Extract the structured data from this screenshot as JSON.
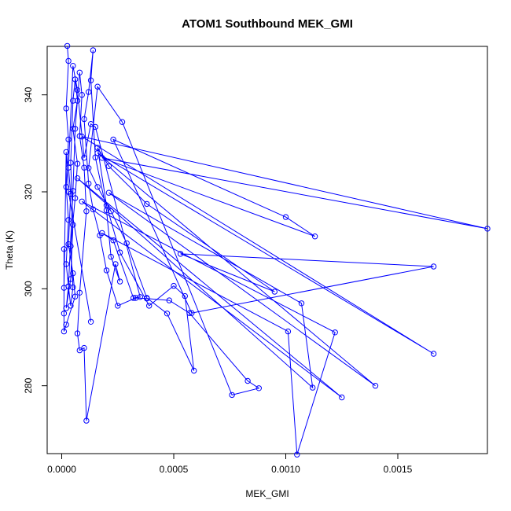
{
  "chart_data": {
    "type": "line",
    "title": "ATOM1 Southbound MEK_GMI",
    "xlabel": "MEK_GMI",
    "ylabel": "Theta (K)",
    "xlim": [
      -6.5e-05,
      0.0019
    ],
    "ylim": [
      266,
      350
    ],
    "x_ticks": [
      0.0,
      0.0005,
      0.001,
      0.0015
    ],
    "x_tick_labels": [
      "0.0000",
      "0.0005",
      "0.0010",
      "0.0015"
    ],
    "y_ticks": [
      280,
      300,
      320,
      340
    ],
    "y_tick_labels": [
      "280",
      "300",
      "320",
      "340"
    ],
    "grid": false,
    "legend": "none",
    "colors": {
      "series": "#0000ff",
      "axes": "#000000"
    },
    "series": [
      {
        "marker": "open-circle",
        "points": [
          [
            2.5e-05,
            350.1
          ],
          [
            3e-05,
            347.0
          ],
          [
            2e-05,
            337.2
          ],
          [
            3e-05,
            330.8
          ],
          [
            2e-05,
            321.0
          ],
          [
            3e-05,
            314.2
          ],
          [
            2e-05,
            305.1
          ],
          [
            3e-05,
            300.5
          ],
          [
            2e-05,
            296.0
          ],
          [
            4e-05,
            302.0
          ],
          [
            5e-05,
            313.2
          ],
          [
            4e-05,
            326.0
          ],
          [
            5e-05,
            338.8
          ],
          [
            6e-05,
            343.2
          ],
          [
            7e-05,
            338.8
          ],
          [
            5e-05,
            333.0
          ],
          [
            7e-05,
            325.8
          ],
          [
            6e-05,
            318.7
          ],
          [
            4e-05,
            308.8
          ],
          [
            5e-05,
            300.3
          ],
          [
            4e-05,
            296.5
          ],
          [
            3e-05,
            300.5
          ],
          [
            5e-05,
            320.2
          ],
          [
            6e-05,
            333.0
          ],
          [
            8e-05,
            344.6
          ],
          [
            9e-05,
            340.0
          ],
          [
            8e-05,
            331.5
          ],
          [
            0.0001,
            325.0
          ],
          [
            0.00011,
            316.0
          ],
          [
            8e-05,
            299.2
          ],
          [
            7e-05,
            290.8
          ],
          [
            8e-05,
            287.3
          ],
          [
            0.0001,
            287.8
          ],
          [
            0.00011,
            272.8
          ],
          [
            0.00024,
            305.1
          ],
          [
            0.00026,
            301.5
          ],
          [
            0.00022,
            306.6
          ],
          [
            0.0002,
            316.2
          ],
          [
            0.00015,
            327.1
          ],
          [
            0.00013,
            343.0
          ],
          [
            0.00014,
            349.2
          ],
          [
            0.00012,
            340.6
          ],
          [
            0.0001,
            335.0
          ],
          [
            0.00012,
            321.7
          ],
          [
            0.00014,
            316.4
          ],
          [
            0.00017,
            311.0
          ],
          [
            0.0002,
            303.8
          ],
          [
            0.00025,
            296.5
          ],
          [
            0.00033,
            298.1
          ],
          [
            0.00038,
            298.0
          ],
          [
            0.00048,
            297.6
          ],
          [
            0.00057,
            295.0
          ],
          [
            0.00083,
            281.0
          ],
          [
            0.00088,
            279.5
          ],
          [
            0.00076,
            278.1
          ],
          [
            0.00027,
            334.4
          ],
          [
            0.00016,
            341.7
          ],
          [
            0.00012,
            324.9
          ],
          [
            0.00016,
            321.0
          ],
          [
            0.00022,
            316.0
          ],
          [
            0.00029,
            309.4
          ],
          [
            0.00038,
            298.1
          ],
          [
            0.00047,
            294.9
          ],
          [
            0.00059,
            283.1
          ],
          [
            0.00055,
            298.5
          ],
          [
            0.0005,
            300.6
          ],
          [
            0.00039,
            296.5
          ],
          [
            0.00026,
            307.5
          ],
          [
            0.0002,
            317.2
          ],
          [
            0.00016,
            329.1
          ],
          [
            0.00021,
            325.3
          ],
          [
            0.00038,
            317.5
          ],
          [
            0.00095,
            299.4
          ],
          [
            0.00053,
            307.2
          ],
          [
            0.00166,
            304.6
          ],
          [
            0.00058,
            295.0
          ],
          [
            0.00023,
            330.8
          ],
          [
            0.001,
            314.8
          ],
          [
            0.00113,
            310.8
          ],
          [
            0.00018,
            327.0
          ],
          [
            0.0019,
            312.4
          ],
          [
            9e-05,
            331.4
          ],
          [
            0.00166,
            286.6
          ],
          [
            0.00016,
            328.0
          ],
          [
            0.0014,
            280.0
          ],
          [
            0.00021,
            319.8
          ],
          [
            0.00107,
            297.0
          ],
          [
            0.00112,
            279.6
          ],
          [
            7e-05,
            322.8
          ],
          [
            0.00125,
            277.6
          ],
          [
            9e-05,
            318.0
          ],
          [
            0.00122,
            291.0
          ],
          [
            0.00105,
            265.8
          ],
          [
            0.00101,
            291.2
          ],
          [
            0.00018,
            311.5
          ],
          [
            0.00023,
            310.0
          ],
          [
            0.00032,
            298.1
          ],
          [
            0.00035,
            298.3
          ],
          [
            0.00015,
            333.4
          ],
          [
            0.00013,
            334.0
          ],
          [
            0.0001,
            327.0
          ],
          [
            7e-05,
            341.0
          ],
          [
            5e-05,
            346.0
          ],
          [
            3e-05,
            325.0
          ],
          [
            4e-05,
            319.6
          ],
          [
            3e-05,
            309.2
          ],
          [
            5e-05,
            303.2
          ],
          [
            6e-05,
            298.4
          ],
          [
            2e-05,
            292.6
          ],
          [
            1e-05,
            291.2
          ],
          [
            1e-05,
            294.9
          ],
          [
            1e-05,
            308.2
          ],
          [
            1e-05,
            300.2
          ],
          [
            2e-05,
            328.2
          ],
          [
            3e-05,
            320.0
          ],
          [
            0.00013,
            293.2
          ]
        ]
      }
    ]
  }
}
